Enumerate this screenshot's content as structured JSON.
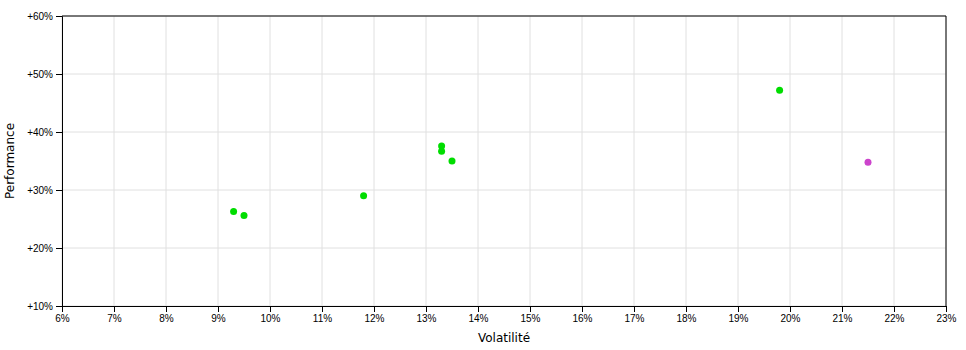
{
  "chart_data": {
    "type": "scatter",
    "xlabel": "Volatilité",
    "ylabel": "Performance",
    "xlim": [
      0.06,
      0.23
    ],
    "ylim": [
      0.1,
      0.6
    ],
    "xticks": [
      {
        "value": 0.06,
        "label": "6%"
      },
      {
        "value": 0.07,
        "label": "7%"
      },
      {
        "value": 0.08,
        "label": "8%"
      },
      {
        "value": 0.09,
        "label": "9%"
      },
      {
        "value": 0.1,
        "label": "10%"
      },
      {
        "value": 0.11,
        "label": "11%"
      },
      {
        "value": 0.12,
        "label": "12%"
      },
      {
        "value": 0.13,
        "label": "13%"
      },
      {
        "value": 0.14,
        "label": "14%"
      },
      {
        "value": 0.15,
        "label": "15%"
      },
      {
        "value": 0.16,
        "label": "16%"
      },
      {
        "value": 0.17,
        "label": "17%"
      },
      {
        "value": 0.18,
        "label": "18%"
      },
      {
        "value": 0.19,
        "label": "19%"
      },
      {
        "value": 0.2,
        "label": "20%"
      },
      {
        "value": 0.21,
        "label": "21%"
      },
      {
        "value": 0.22,
        "label": "22%"
      },
      {
        "value": 0.23,
        "label": "23%"
      }
    ],
    "yticks": [
      {
        "value": 0.1,
        "label": "+10%"
      },
      {
        "value": 0.2,
        "label": "+20%"
      },
      {
        "value": 0.3,
        "label": "+30%"
      },
      {
        "value": 0.4,
        "label": "+40%"
      },
      {
        "value": 0.5,
        "label": "+50%"
      },
      {
        "value": 0.6,
        "label": "+60%"
      }
    ],
    "grid": true,
    "series": [
      {
        "color": "#00dd00",
        "x": [
          0.093,
          0.095,
          0.118,
          0.133,
          0.133,
          0.135,
          0.198
        ],
        "values": [
          0.263,
          0.256,
          0.29,
          0.376,
          0.367,
          0.35,
          0.472
        ]
      },
      {
        "color": "#cc44cc",
        "x": [
          0.215
        ],
        "values": [
          0.348
        ]
      }
    ]
  }
}
